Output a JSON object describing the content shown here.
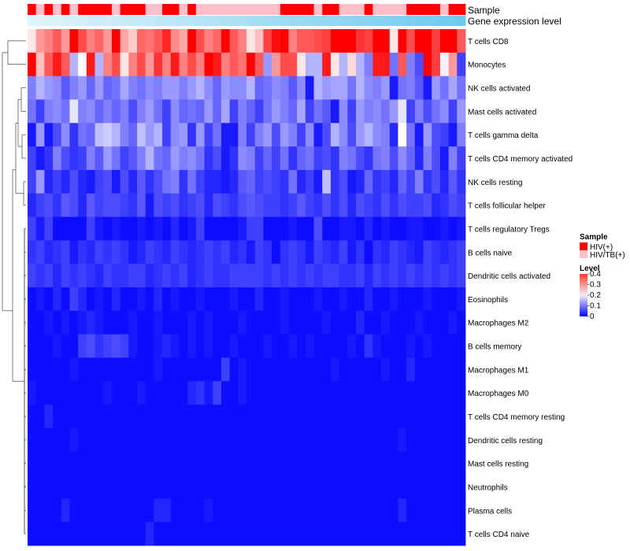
{
  "chart_data": {
    "type": "heatmap",
    "title": "",
    "rows": [
      "T cells CD8",
      "Monocytes",
      "NK cells activated",
      "Mast cells activated",
      "T cells gamma delta",
      "T cells CD4 memory activated",
      "NK cells resting",
      "T cells follicular helper",
      "T cells regulatory  Tregs",
      "B cells naive",
      "Dendritic cells activated",
      "Eosinophils",
      "Macrophages M2",
      "B cells memory",
      "Macrophages M1",
      "Macrophages M0",
      "T cells CD4 memory resting",
      "Dendritic cells resting",
      "Mast cells resting",
      "Neutrophils",
      "Plasma cells",
      "T cells CD4 naive"
    ],
    "annotations": [
      {
        "name": "Sample"
      },
      {
        "name": "Gene expression level"
      }
    ],
    "sample_groups": [
      "HIV(+)",
      "HIV/TB(+)",
      "HIV(+)",
      "HIV/TB(+)",
      "HIV(+)",
      "HIV/TB(+)",
      "HIV(+)",
      "HIV(+)",
      "HIV(+)",
      "HIV(+)",
      "HIV/TB(+)",
      "HIV(+)",
      "HIV(+)",
      "HIV(+)",
      "HIV/TB(+)",
      "HIV/TB(+)",
      "HIV(+)",
      "HIV(+)",
      "HIV/TB(+)",
      "HIV(+)",
      "HIV/TB(+)",
      "HIV/TB(+)",
      "HIV/TB(+)",
      "HIV/TB(+)",
      "HIV/TB(+)",
      "HIV/TB(+)",
      "HIV/TB(+)",
      "HIV/TB(+)",
      "HIV/TB(+)",
      "HIV/TB(+)",
      "HIV(+)",
      "HIV(+)",
      "HIV(+)",
      "HIV(+)",
      "HIV/TB(+)",
      "HIV(+)",
      "HIV(+)",
      "HIV/TB(+)",
      "HIV/TB(+)",
      "HIV/TB(+)",
      "HIV(+)",
      "HIV/TB(+)",
      "HIV/TB(+)",
      "HIV/TB(+)",
      "HIV/TB(+)",
      "HIV(+)",
      "HIV(+)",
      "HIV(+)",
      "HIV(+)",
      "HIV/TB(+)",
      "HIV(+)",
      "HIV(+)"
    ],
    "values": [
      [
        0.22,
        0.28,
        0.3,
        0.33,
        0.28,
        0.4,
        0.34,
        0.3,
        0.32,
        0.28,
        0.4,
        0.27,
        0.24,
        0.32,
        0.31,
        0.33,
        0.37,
        0.29,
        0.27,
        0.4,
        0.34,
        0.3,
        0.32,
        0.4,
        0.33,
        0.3,
        0.22,
        0.25,
        0.35,
        0.39,
        0.4,
        0.3,
        0.33,
        0.33,
        0.34,
        0.35,
        0.4,
        0.4,
        0.4,
        0.36,
        0.35,
        0.4,
        0.4,
        0.22,
        0.4,
        0.34,
        0.4,
        0.4,
        0.35,
        0.4,
        0.4,
        0.33
      ],
      [
        0.4,
        0.25,
        0.33,
        0.38,
        0.33,
        0.14,
        0.2,
        0.38,
        0.14,
        0.3,
        0.34,
        0.22,
        0.3,
        0.34,
        0.28,
        0.36,
        0.3,
        0.38,
        0.3,
        0.34,
        0.3,
        0.4,
        0.38,
        0.3,
        0.33,
        0.31,
        0.4,
        0.33,
        0.12,
        0.28,
        0.34,
        0.34,
        0.22,
        0.14,
        0.14,
        0.38,
        0.22,
        0.14,
        0.23,
        0.14,
        0.1,
        0.38,
        0.38,
        0.09,
        0.33,
        0.1,
        0.06,
        0.4,
        0.35,
        0.19,
        0.28,
        0.05
      ],
      [
        0.1,
        0.14,
        0.12,
        0.11,
        0.07,
        0.1,
        0.12,
        0.08,
        0.12,
        0.08,
        0.09,
        0.13,
        0.1,
        0.09,
        0.11,
        0.1,
        0.12,
        0.12,
        0.1,
        0.12,
        0.14,
        0.11,
        0.08,
        0.12,
        0.11,
        0.11,
        0.14,
        0.08,
        0.09,
        0.11,
        0.1,
        0.07,
        0.11,
        0.02,
        0.14,
        0.12,
        0.13,
        0.13,
        0.09,
        0.14,
        0.11,
        0.1,
        0.12,
        0.02,
        0.09,
        0.1,
        0.07,
        0.02,
        0.12,
        0.09,
        0.13,
        0.09
      ],
      [
        0.09,
        0.05,
        0.1,
        0.11,
        0.09,
        0.18,
        0.1,
        0.11,
        0.08,
        0.1,
        0.08,
        0.1,
        0.06,
        0.1,
        0.12,
        0.09,
        0.05,
        0.11,
        0.08,
        0.09,
        0.08,
        0.12,
        0.08,
        0.13,
        0.05,
        0.1,
        0.08,
        0.05,
        0.09,
        0.12,
        0.1,
        0.08,
        0.13,
        0.05,
        0.09,
        0.07,
        0.02,
        0.11,
        0.05,
        0.12,
        0.1,
        0.11,
        0.09,
        0.12,
        0.18,
        0.05,
        0.1,
        0.06,
        0.09,
        0.11,
        0.05,
        0.12
      ],
      [
        0.02,
        0.12,
        0.02,
        0.06,
        0.11,
        0.04,
        0.09,
        0.08,
        0.15,
        0.16,
        0.14,
        0.1,
        0.08,
        0.15,
        0.12,
        0.14,
        0.05,
        0.11,
        0.12,
        0.04,
        0.12,
        0.05,
        0.09,
        0.02,
        0.02,
        0.1,
        0.05,
        0.1,
        0.12,
        0.06,
        0.12,
        0.1,
        0.05,
        0.11,
        0.02,
        0.06,
        0.14,
        0.11,
        0.06,
        0.12,
        0.14,
        0.11,
        0.1,
        0.03,
        0.2,
        0.09,
        0.02,
        0.12,
        0.06,
        0.05,
        0.02,
        0.1
      ],
      [
        0.05,
        0.02,
        0.04,
        0.1,
        0.06,
        0.04,
        0.05,
        0.1,
        0.07,
        0.12,
        0.09,
        0.05,
        0.07,
        0.1,
        0.14,
        0.09,
        0.08,
        0.12,
        0.1,
        0.11,
        0.09,
        0.04,
        0.06,
        0.02,
        0.04,
        0.11,
        0.1,
        0.05,
        0.08,
        0.05,
        0.09,
        0.04,
        0.08,
        0.09,
        0.05,
        0.06,
        0.04,
        0.1,
        0.09,
        0.06,
        0.04,
        0.09,
        0.1,
        0.06,
        0.11,
        0.08,
        0.03,
        0.1,
        0.06,
        0.02,
        0.1,
        0.05
      ],
      [
        0.05,
        0.12,
        0.03,
        0.05,
        0.03,
        0.06,
        0.03,
        0.02,
        0.05,
        0.06,
        0.02,
        0.06,
        0.03,
        0.07,
        0.04,
        0.06,
        0.09,
        0.1,
        0.04,
        0.09,
        0.05,
        0.03,
        0.03,
        0.02,
        0.03,
        0.07,
        0.08,
        0.05,
        0.06,
        0.05,
        0.04,
        0.09,
        0.03,
        0.05,
        0.02,
        0.15,
        0.04,
        0.06,
        0.02,
        0.03,
        0.08,
        0.04,
        0.05,
        0.03,
        0.08,
        0.05,
        0.1,
        0.04,
        0.06,
        0.03,
        0.07,
        0.04
      ],
      [
        0.03,
        0.05,
        0.06,
        0.04,
        0.07,
        0.06,
        0.03,
        0.07,
        0.05,
        0.06,
        0.06,
        0.05,
        0.04,
        0.07,
        0.02,
        0.06,
        0.05,
        0.06,
        0.04,
        0.05,
        0.06,
        0.03,
        0.06,
        0.05,
        0.04,
        0.06,
        0.07,
        0.06,
        0.05,
        0.05,
        0.04,
        0.05,
        0.07,
        0.05,
        0.04,
        0.06,
        0.04,
        0.06,
        0.03,
        0.06,
        0.05,
        0.04,
        0.06,
        0.04,
        0.06,
        0.05,
        0.05,
        0.06,
        0.03,
        0.04,
        0.06,
        0.05
      ],
      [
        0.05,
        0.02,
        0.05,
        0.01,
        0.01,
        0.01,
        0.01,
        0.05,
        0.02,
        0.01,
        0.02,
        0.01,
        0.01,
        0.02,
        0.01,
        0.02,
        0.01,
        0.03,
        0.01,
        0.02,
        0.05,
        0.01,
        0.01,
        0.01,
        0.01,
        0.02,
        0.05,
        0.05,
        0.01,
        0.01,
        0.01,
        0.02,
        0.01,
        0.01,
        0.06,
        0.01,
        0.01,
        0.02,
        0.02,
        0.01,
        0.03,
        0.01,
        0.02,
        0.01,
        0.01,
        0.02,
        0.02,
        0.01,
        0.01,
        0.02,
        0.01,
        0.02
      ],
      [
        0.04,
        0.05,
        0.03,
        0.04,
        0.05,
        0.02,
        0.04,
        0.03,
        0.05,
        0.04,
        0.05,
        0.04,
        0.02,
        0.03,
        0.05,
        0.04,
        0.03,
        0.05,
        0.04,
        0.03,
        0.04,
        0.05,
        0.04,
        0.05,
        0.03,
        0.04,
        0.02,
        0.05,
        0.04,
        0.01,
        0.04,
        0.05,
        0.04,
        0.02,
        0.05,
        0.04,
        0.03,
        0.05,
        0.02,
        0.04,
        0.01,
        0.04,
        0.03,
        0.05,
        0.04,
        0.03,
        0.02,
        0.05,
        0.04,
        0.03,
        0.04,
        0.05
      ],
      [
        0.05,
        0.04,
        0.05,
        0.03,
        0.05,
        0.04,
        0.05,
        0.04,
        0.03,
        0.05,
        0.04,
        0.04,
        0.05,
        0.05,
        0.03,
        0.04,
        0.05,
        0.04,
        0.05,
        0.03,
        0.04,
        0.05,
        0.04,
        0.04,
        0.05,
        0.05,
        0.05,
        0.05,
        0.04,
        0.05,
        0.04,
        0.05,
        0.04,
        0.05,
        0.04,
        0.05,
        0.05,
        0.04,
        0.04,
        0.05,
        0.03,
        0.05,
        0.04,
        0.05,
        0.04,
        0.05,
        0.04,
        0.05,
        0.04,
        0.05,
        0.04,
        0.05
      ],
      [
        0.01,
        0.02,
        0.01,
        0.03,
        0.01,
        0.05,
        0.03,
        0.01,
        0.02,
        0.01,
        0.03,
        0.01,
        0.01,
        0.02,
        0.01,
        0.03,
        0.01,
        0.02,
        0.01,
        0.01,
        0.02,
        0.01,
        0.01,
        0.01,
        0.02,
        0.01,
        0.01,
        0.03,
        0.01,
        0.01,
        0.02,
        0.01,
        0.01,
        0.01,
        0.02,
        0.01,
        0.01,
        0.02,
        0.01,
        0.01,
        0.03,
        0.01,
        0.01,
        0.02,
        0.01,
        0.01,
        0.01,
        0.02,
        0.01,
        0.01,
        0.01,
        0.02
      ],
      [
        0.01,
        0.01,
        0.02,
        0.01,
        0.02,
        0.01,
        0.02,
        0.03,
        0.02,
        0.01,
        0.01,
        0.01,
        0.02,
        0.01,
        0.01,
        0.02,
        0.01,
        0.01,
        0.01,
        0.02,
        0.01,
        0.02,
        0.01,
        0.01,
        0.01,
        0.02,
        0.01,
        0.01,
        0.01,
        0.01,
        0.02,
        0.01,
        0.01,
        0.01,
        0.01,
        0.02,
        0.01,
        0.01,
        0.01,
        0.03,
        0.01,
        0.01,
        0.02,
        0.01,
        0.01,
        0.01,
        0.02,
        0.01,
        0.01,
        0.01,
        0.02,
        0.01
      ],
      [
        0.01,
        0.01,
        0.01,
        0.02,
        0.01,
        0.01,
        0.05,
        0.06,
        0.04,
        0.05,
        0.06,
        0.05,
        0.02,
        0.01,
        0.01,
        0.02,
        0.03,
        0.02,
        0.01,
        0.02,
        0.01,
        0.02,
        0.01,
        0.01,
        0.02,
        0.01,
        0.01,
        0.01,
        0.02,
        0.01,
        0.01,
        0.02,
        0.01,
        0.02,
        0.01,
        0.01,
        0.01,
        0.01,
        0.02,
        0.01,
        0.04,
        0.02,
        0.01,
        0.01,
        0.01,
        0.02,
        0.01,
        0.02,
        0.01,
        0.01,
        0.01,
        0.01
      ],
      [
        0.01,
        0.01,
        0.01,
        0.01,
        0.01,
        0.02,
        0.01,
        0.01,
        0.01,
        0.01,
        0.01,
        0.01,
        0.01,
        0.01,
        0.01,
        0.02,
        0.01,
        0.01,
        0.01,
        0.01,
        0.01,
        0.01,
        0.01,
        0.05,
        0.01,
        0.02,
        0.01,
        0.01,
        0.01,
        0.01,
        0.01,
        0.01,
        0.01,
        0.01,
        0.01,
        0.01,
        0.02,
        0.01,
        0.01,
        0.01,
        0.01,
        0.01,
        0.02,
        0.01,
        0.01,
        0.03,
        0.01,
        0.01,
        0.01,
        0.01,
        0.01,
        0.01
      ],
      [
        0.02,
        0.01,
        0.01,
        0.01,
        0.01,
        0.01,
        0.01,
        0.01,
        0.01,
        0.02,
        0.01,
        0.01,
        0.01,
        0.02,
        0.01,
        0.01,
        0.01,
        0.01,
        0.01,
        0.03,
        0.04,
        0.02,
        0.05,
        0.01,
        0.01,
        0.02,
        0.01,
        0.01,
        0.01,
        0.01,
        0.01,
        0.01,
        0.01,
        0.01,
        0.01,
        0.01,
        0.01,
        0.01,
        0.01,
        0.01,
        0.01,
        0.01,
        0.01,
        0.01,
        0.01,
        0.01,
        0.01,
        0.01,
        0.01,
        0.01,
        0.01,
        0.01
      ],
      [
        0.01,
        0.01,
        0.03,
        0.01,
        0.01,
        0.01,
        0.01,
        0.01,
        0.01,
        0.01,
        0.01,
        0.01,
        0.01,
        0.01,
        0.01,
        0.01,
        0.01,
        0.01,
        0.01,
        0.01,
        0.01,
        0.01,
        0.01,
        0.01,
        0.01,
        0.01,
        0.01,
        0.01,
        0.01,
        0.01,
        0.01,
        0.01,
        0.01,
        0.01,
        0.01,
        0.01,
        0.01,
        0.01,
        0.01,
        0.01,
        0.01,
        0.01,
        0.01,
        0.01,
        0.01,
        0.01,
        0.01,
        0.01,
        0.01,
        0.01,
        0.01,
        0.01
      ],
      [
        0.01,
        0.01,
        0.01,
        0.01,
        0.01,
        0.02,
        0.01,
        0.01,
        0.01,
        0.01,
        0.01,
        0.01,
        0.01,
        0.01,
        0.01,
        0.01,
        0.01,
        0.01,
        0.01,
        0.01,
        0.01,
        0.01,
        0.01,
        0.01,
        0.01,
        0.01,
        0.01,
        0.01,
        0.01,
        0.01,
        0.01,
        0.01,
        0.01,
        0.01,
        0.01,
        0.01,
        0.01,
        0.01,
        0.01,
        0.01,
        0.01,
        0.01,
        0.01,
        0.01,
        0.02,
        0.01,
        0.01,
        0.01,
        0.01,
        0.01,
        0.01,
        0.01
      ],
      [
        0.01,
        0.01,
        0.01,
        0.01,
        0.01,
        0.01,
        0.01,
        0.01,
        0.01,
        0.01,
        0.01,
        0.01,
        0.01,
        0.01,
        0.01,
        0.01,
        0.01,
        0.01,
        0.01,
        0.01,
        0.01,
        0.01,
        0.01,
        0.01,
        0.01,
        0.01,
        0.01,
        0.01,
        0.01,
        0.01,
        0.01,
        0.01,
        0.01,
        0.01,
        0.01,
        0.01,
        0.01,
        0.01,
        0.01,
        0.01,
        0.01,
        0.01,
        0.01,
        0.01,
        0.01,
        0.01,
        0.01,
        0.01,
        0.01,
        0.01,
        0.01,
        0.01
      ],
      [
        0.01,
        0.01,
        0.01,
        0.01,
        0.01,
        0.01,
        0.01,
        0.01,
        0.01,
        0.01,
        0.01,
        0.01,
        0.01,
        0.01,
        0.01,
        0.01,
        0.01,
        0.01,
        0.01,
        0.01,
        0.01,
        0.01,
        0.01,
        0.01,
        0.01,
        0.01,
        0.01,
        0.01,
        0.01,
        0.01,
        0.01,
        0.01,
        0.01,
        0.01,
        0.01,
        0.01,
        0.01,
        0.01,
        0.01,
        0.01,
        0.01,
        0.01,
        0.01,
        0.01,
        0.01,
        0.01,
        0.01,
        0.01,
        0.01,
        0.01,
        0.01,
        0.01
      ],
      [
        0.01,
        0.01,
        0.01,
        0.01,
        0.03,
        0.01,
        0.01,
        0.01,
        0.01,
        0.01,
        0.01,
        0.01,
        0.01,
        0.01,
        0.01,
        0.03,
        0.03,
        0.01,
        0.01,
        0.01,
        0.01,
        0.02,
        0.01,
        0.01,
        0.01,
        0.01,
        0.01,
        0.01,
        0.01,
        0.01,
        0.01,
        0.01,
        0.01,
        0.01,
        0.01,
        0.01,
        0.01,
        0.01,
        0.01,
        0.01,
        0.01,
        0.01,
        0.01,
        0.01,
        0.03,
        0.01,
        0.01,
        0.01,
        0.01,
        0.01,
        0.01,
        0.01
      ],
      [
        0.01,
        0.01,
        0.01,
        0.01,
        0.01,
        0.01,
        0.01,
        0.01,
        0.01,
        0.01,
        0.01,
        0.01,
        0.01,
        0.01,
        0.03,
        0.01,
        0.01,
        0.01,
        0.01,
        0.01,
        0.01,
        0.01,
        0.01,
        0.01,
        0.01,
        0.01,
        0.01,
        0.01,
        0.01,
        0.01,
        0.01,
        0.01,
        0.01,
        0.01,
        0.01,
        0.01,
        0.01,
        0.01,
        0.01,
        0.01,
        0.01,
        0.01,
        0.01,
        0.01,
        0.01,
        0.01,
        0.01,
        0.01,
        0.01,
        0.01,
        0.01,
        0.01
      ]
    ],
    "value_range": [
      0,
      0.4
    ],
    "legend": {
      "sample_title": "Sample",
      "sample_items": [
        {
          "label": "HIV(+)",
          "color": "#ff0000"
        },
        {
          "label": "HIV/TB(+)",
          "color": "#ffc0cb"
        }
      ],
      "level_title": "Level",
      "level_ticks": [
        "0.4",
        "0.3",
        "0.2",
        "0.1",
        "0"
      ],
      "level_tick_values": [
        0.4,
        0.3,
        0.2,
        0.1,
        0
      ],
      "placement": "right"
    },
    "colors": {
      "low": "#0000ff",
      "mid": "#ffffff",
      "high": "#ff0000",
      "expr_annotation_start": "#e0f4fb",
      "expr_annotation_end": "#6ecbf0"
    }
  }
}
